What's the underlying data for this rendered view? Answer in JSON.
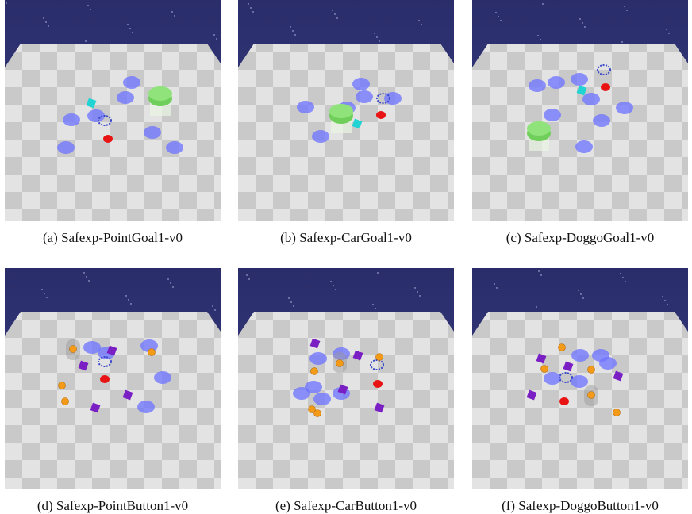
{
  "figure": {
    "panels": [
      {
        "caption": "(a) Safexp-PointGoal1-v0"
      },
      {
        "caption": "(b) Safexp-CarGoal1-v0"
      },
      {
        "caption": "(c) Safexp-DoggoGoal1-v0"
      },
      {
        "caption": "(d) Safexp-PointButton1-v0"
      },
      {
        "caption": "(e) Safexp-CarButton1-v0"
      },
      {
        "caption": "(f) Safexp-DoggoButton1-v0"
      }
    ]
  }
}
